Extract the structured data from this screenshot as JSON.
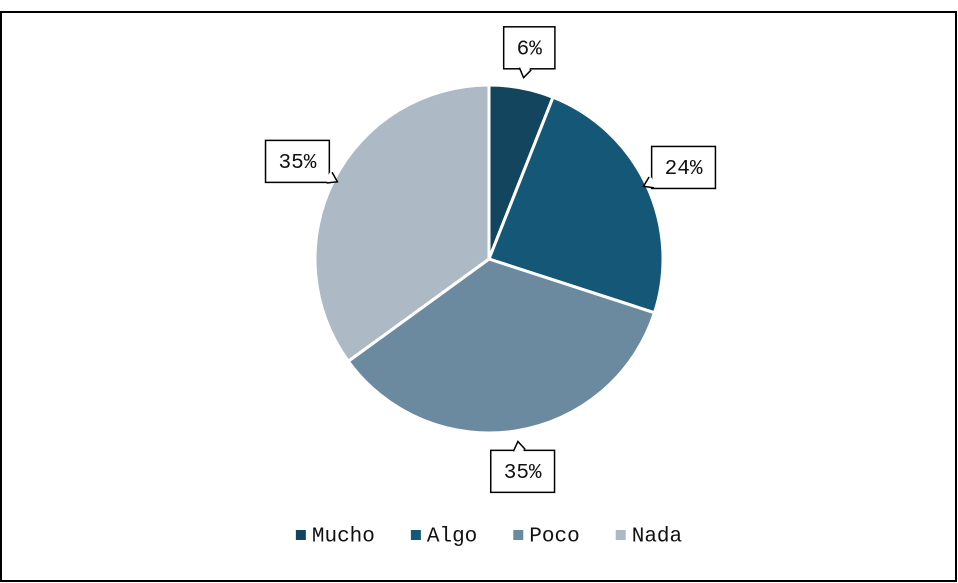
{
  "chart_data": {
    "type": "pie",
    "categories": [
      "Mucho",
      "Algo",
      "Poco",
      "Nada"
    ],
    "values": [
      6,
      24,
      35,
      35
    ],
    "value_labels": [
      "6%",
      "24%",
      "35%",
      "35%"
    ],
    "colors": [
      "#14455f",
      "#155777",
      "#6b8aa0",
      "#adb9c5"
    ],
    "legend": "bottom"
  }
}
